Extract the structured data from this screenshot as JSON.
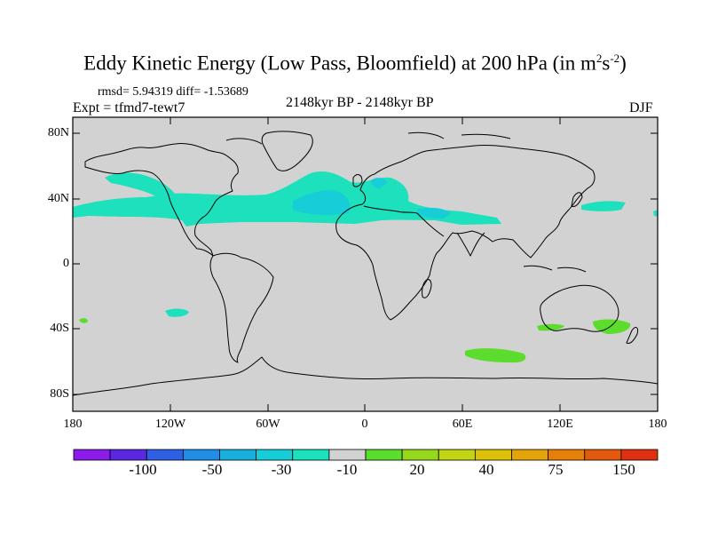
{
  "title": {
    "main": "Eddy Kinetic Energy (Low Pass, Bloomfield) at 200 hPa (in m",
    "sup1": "2",
    "mid": "s",
    "sup2": "-2",
    "end": ")"
  },
  "stats": "rmsd= 5.94319 diff= -1.53689",
  "expt": "Expt = tfmd7-tewt7",
  "period": "2148kyr BP - 2148kyr BP",
  "season": "DJF",
  "map": {
    "land_color": "#d2d2d2",
    "lat_ticks": [
      "80N",
      "40N",
      "0",
      "40S",
      "80S"
    ],
    "lon_ticks": [
      "180",
      "120W",
      "60W",
      "0",
      "60E",
      "120E",
      "180"
    ]
  },
  "colorbar": {
    "colors": [
      "#8a1be8",
      "#5a28e2",
      "#2f5fe3",
      "#1e8ee6",
      "#19b0e0",
      "#16cdd8",
      "#1de0bd",
      "#d2d2d2",
      "#5cdc2c",
      "#95d81c",
      "#c2d414",
      "#dcc00c",
      "#e5a30a",
      "#e6800a",
      "#e45a0c",
      "#e0300f"
    ],
    "labels": [
      "-100",
      "-50",
      "-30",
      "-10",
      "20",
      "40",
      "75",
      "150"
    ]
  },
  "anomaly_colors": {
    "neg_light": "#1de0bd",
    "neg_mid": "#16cdd8",
    "pos_light": "#5cdc2c"
  }
}
